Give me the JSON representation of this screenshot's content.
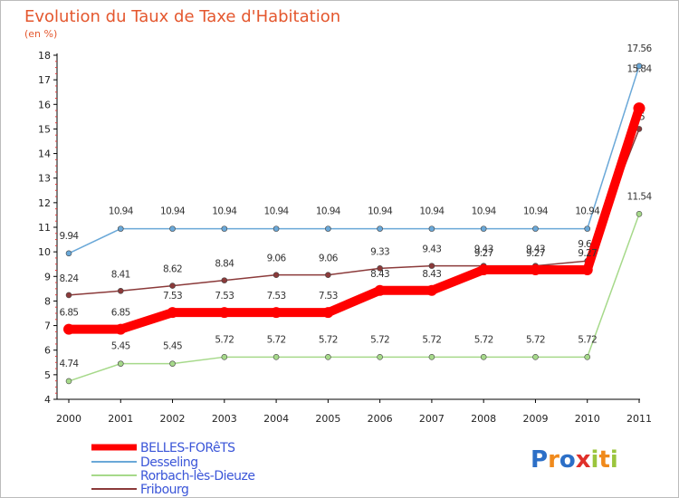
{
  "chart_data": {
    "type": "line",
    "title": "Evolution du Taux de Taxe d'Habitation",
    "subtitle": "(en %)",
    "x": [
      "2000",
      "2001",
      "2002",
      "2003",
      "2004",
      "2005",
      "2006",
      "2007",
      "2008",
      "2009",
      "2010",
      "2011"
    ],
    "ylim": [
      4,
      18
    ],
    "yticks": [
      4,
      5,
      6,
      7,
      8,
      9,
      10,
      11,
      12,
      13,
      14,
      15,
      16,
      17,
      18
    ],
    "grid": false,
    "legend_position": "bottom-left",
    "series": [
      {
        "name": "BELLES-FORêTS",
        "color": "#ff0000",
        "emphasis": true,
        "values": [
          6.85,
          6.85,
          7.53,
          7.53,
          7.53,
          7.53,
          8.43,
          8.43,
          9.27,
          9.27,
          9.27,
          15.84
        ],
        "labels": [
          "6.85",
          "6.85",
          "7.53",
          "7.53",
          "7.53",
          "7.53",
          "8.43",
          "8.43",
          "9.27",
          "9.27",
          "9.27",
          "15.84"
        ]
      },
      {
        "name": "Desseling",
        "color": "#6aa8d8",
        "values": [
          9.94,
          10.94,
          10.94,
          10.94,
          10.94,
          10.94,
          10.94,
          10.94,
          10.94,
          10.94,
          10.94,
          17.56
        ],
        "labels": [
          "9.94",
          "10.94",
          "10.94",
          "10.94",
          "10.94",
          "10.94",
          "10.94",
          "10.94",
          "10.94",
          "10.94",
          "10.94",
          "17.56"
        ]
      },
      {
        "name": "Rorbach-lès-Dieuze",
        "color": "#a6d98a",
        "values": [
          4.74,
          5.45,
          5.45,
          5.72,
          5.72,
          5.72,
          5.72,
          5.72,
          5.72,
          5.72,
          5.72,
          11.54
        ],
        "labels": [
          "4.74",
          "5.45",
          "5.45",
          "5.72",
          "5.72",
          "5.72",
          "5.72",
          "5.72",
          "5.72",
          "5.72",
          "5.72",
          "11.54"
        ]
      },
      {
        "name": "Fribourg",
        "color": "#8b3a3a",
        "values": [
          8.24,
          8.41,
          8.62,
          8.84,
          9.06,
          9.06,
          9.33,
          9.43,
          9.43,
          9.43,
          9.63,
          15
        ],
        "labels": [
          "8.24",
          "8.41",
          "8.62",
          "8.84",
          "9.06",
          "9.06",
          "9.33",
          "9.43",
          "9.43",
          "9.43",
          "9.63",
          "15"
        ]
      }
    ]
  },
  "logo": {
    "text": "Proxiti"
  }
}
